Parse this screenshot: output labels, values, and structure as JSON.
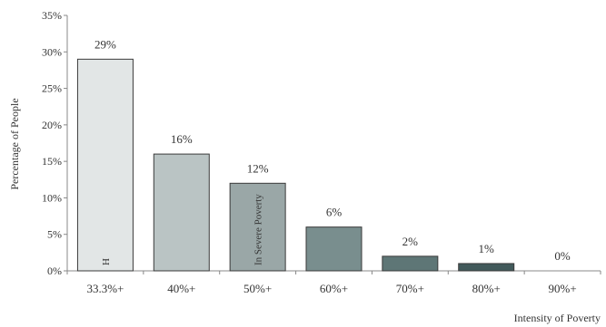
{
  "chart_data": {
    "type": "bar",
    "title": "",
    "xlabel": "Intensity of Poverty",
    "ylabel": "Percentage of  People",
    "categories": [
      "33.3%+",
      "40%+",
      "50%+",
      "60%+",
      "70%+",
      "80%+",
      "90%+"
    ],
    "values": [
      29,
      16,
      12,
      6,
      2,
      1,
      0
    ],
    "data_labels": [
      "29%",
      "16%",
      "12%",
      "6%",
      "2%",
      "1%",
      "0%"
    ],
    "ylim": [
      0,
      35
    ],
    "yticks": [
      0,
      5,
      10,
      15,
      20,
      25,
      30,
      35
    ],
    "ytick_labels": [
      "0%",
      "5%",
      "10%",
      "15%",
      "20%",
      "25%",
      "30%",
      "35%"
    ],
    "bar_colors": [
      "#e2e6e6",
      "#bac4c4",
      "#9aa7a7",
      "#798e8e",
      "#5e7676",
      "#425a5b",
      "#425a5b"
    ],
    "bar_edge_color": "#3a3a3a",
    "in_bar_labels": [
      {
        "category": "33.3%+",
        "text": "H"
      },
      {
        "category": "50%+",
        "text": "In Severe Poverty"
      }
    ],
    "grid": false,
    "legend": "none"
  }
}
